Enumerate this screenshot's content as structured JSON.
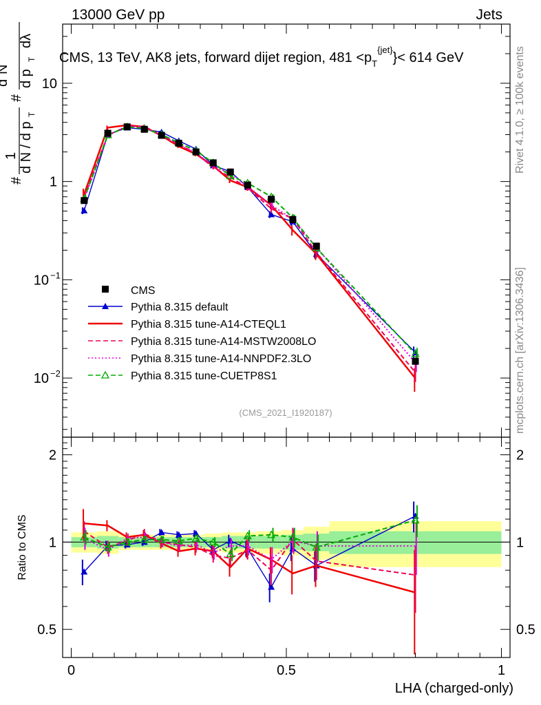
{
  "header": {
    "energy": "13000 GeV pp",
    "category": "Jets"
  },
  "side": {
    "rivet": "Rivet 4.1.0, ≥ 100k events",
    "mcplots": "mcplots.cern.ch [arXiv:1306.3436]"
  },
  "chart_data": {
    "type": "line",
    "title": "CMS, 13 TeV, AK8 jets, forward dijet region, 481 <p_T^{jet}< 614 GeV",
    "title_parts": {
      "main": "CMS, 13 TeV, AK8 jets, forward dijet region, 481 <p",
      "sub": "T",
      "sup": "{jet}",
      "tail": "}< 614 GeV"
    },
    "analysis_id": "(CMS_2021_I1920187)",
    "xlabel": "LHA (charged-only)",
    "ylabel_parts": [
      "#",
      "1",
      "d N / d p",
      "T",
      "#",
      "d",
      "2",
      "N",
      "d p",
      "T",
      "dλ"
    ],
    "ratio_ylabel": "Ratio to CMS",
    "xlim": [
      -0.02,
      1.02
    ],
    "main_ylim": [
      0.0025,
      40
    ],
    "ratio_ylim": [
      0.4,
      2.3
    ],
    "x_ticks": [
      {
        "v": 0,
        "label": "0"
      },
      {
        "v": 0.5,
        "label": "0.5"
      },
      {
        "v": 1,
        "label": "1"
      }
    ],
    "main_y_ticks": [
      {
        "v": 0.01,
        "base": "10",
        "exp": "−2"
      },
      {
        "v": 0.1,
        "base": "10",
        "exp": "−1"
      },
      {
        "v": 1,
        "base": "1",
        "exp": ""
      },
      {
        "v": 10,
        "base": "10",
        "exp": ""
      }
    ],
    "ratio_y_ticks": [
      {
        "v": 0.5,
        "label": "0.5"
      },
      {
        "v": 1,
        "label": "1"
      },
      {
        "v": 2,
        "label": "2"
      }
    ],
    "bins": [
      {
        "lo": 0.0,
        "hi": 0.06
      },
      {
        "lo": 0.06,
        "hi": 0.11
      },
      {
        "lo": 0.11,
        "hi": 0.15
      },
      {
        "lo": 0.15,
        "hi": 0.19
      },
      {
        "lo": 0.19,
        "hi": 0.23
      },
      {
        "lo": 0.23,
        "hi": 0.27
      },
      {
        "lo": 0.27,
        "hi": 0.31
      },
      {
        "lo": 0.31,
        "hi": 0.35
      },
      {
        "lo": 0.35,
        "hi": 0.39
      },
      {
        "lo": 0.39,
        "hi": 0.43
      },
      {
        "lo": 0.43,
        "hi": 0.49
      },
      {
        "lo": 0.49,
        "hi": 0.54
      },
      {
        "lo": 0.54,
        "hi": 0.6
      },
      {
        "lo": 0.6,
        "hi": 1.0
      }
    ],
    "x": [
      0.03,
      0.085,
      0.13,
      0.17,
      0.21,
      0.25,
      0.29,
      0.33,
      0.37,
      0.41,
      0.465,
      0.515,
      0.57,
      0.8
    ],
    "data": {
      "name": "CMS",
      "values": [
        0.64,
        3.1,
        3.6,
        3.4,
        2.95,
        2.45,
        2.0,
        1.55,
        1.25,
        0.92,
        0.66,
        0.41,
        0.22,
        0.0148
      ],
      "band_inner": [
        0.04,
        0.05,
        0.04,
        0.04,
        0.04,
        0.04,
        0.04,
        0.04,
        0.05,
        0.05,
        0.05,
        0.06,
        0.07,
        0.09
      ],
      "band_outer": [
        0.08,
        0.09,
        0.06,
        0.06,
        0.06,
        0.06,
        0.06,
        0.07,
        0.08,
        0.08,
        0.09,
        0.1,
        0.13,
        0.18
      ]
    },
    "series": [
      {
        "name": "Pythia 8.315 default",
        "color": "#0000cc",
        "style": "solid",
        "marker": "triangle-filled",
        "ratios": [
          0.79,
          0.97,
          0.98,
          1.0,
          1.08,
          1.06,
          1.07,
          0.94,
          1.01,
          0.95,
          0.7,
          0.95,
          0.83,
          1.23
        ],
        "ratio_err": [
          0.08,
          0.04,
          0.03,
          0.03,
          0.03,
          0.03,
          0.03,
          0.04,
          0.05,
          0.06,
          0.08,
          0.09,
          0.1,
          0.15
        ]
      },
      {
        "name": "Pythia 8.315 tune-A14-CTEQL1",
        "color": "#ee0000",
        "style": "solid",
        "marker": "none",
        "ratios": [
          1.16,
          1.14,
          1.04,
          1.06,
          0.99,
          0.93,
          0.95,
          0.93,
          0.82,
          0.95,
          0.87,
          0.78,
          0.83,
          0.67
        ],
        "ratio_err": [
          0.14,
          0.05,
          0.04,
          0.04,
          0.04,
          0.04,
          0.05,
          0.05,
          0.06,
          0.07,
          0.09,
          0.12,
          0.13,
          0.27
        ]
      },
      {
        "name": "Pythia 8.315 tune-A14-MSTW2008LO",
        "color": "#ee0055",
        "style": "dashed",
        "marker": "none",
        "ratios": [
          1.09,
          0.96,
          1.01,
          1.07,
          1.0,
          0.98,
          0.96,
          0.9,
          0.88,
          0.94,
          0.8,
          1.02,
          0.86,
          0.77
        ],
        "ratio_err": [
          0.09,
          0.05,
          0.04,
          0.04,
          0.04,
          0.04,
          0.04,
          0.05,
          0.06,
          0.07,
          0.09,
          0.1,
          0.12,
          0.2
        ]
      },
      {
        "name": "Pythia 8.315 tune-A14-NNPDF2.3LO",
        "color": "#dd00dd",
        "style": "dotted",
        "marker": "none",
        "ratios": [
          1.03,
          0.94,
          1.03,
          1.04,
          1.0,
          0.97,
          0.98,
          0.92,
          0.97,
          0.97,
          0.87,
          1.01,
          0.97,
          0.97
        ],
        "ratio_err": [
          0.09,
          0.05,
          0.04,
          0.04,
          0.04,
          0.04,
          0.04,
          0.05,
          0.06,
          0.07,
          0.09,
          0.1,
          0.12,
          0.2
        ]
      },
      {
        "name": "Pythia 8.315 tune-CUETP8S1",
        "color": "#00aa00",
        "style": "dashed",
        "marker": "triangle-open",
        "ratios": [
          1.04,
          0.96,
          1.0,
          1.02,
          1.02,
          1.01,
          1.03,
          1.0,
          0.91,
          1.05,
          1.06,
          1.04,
          0.96,
          1.19
        ],
        "ratio_err": [
          0.06,
          0.04,
          0.03,
          0.03,
          0.03,
          0.03,
          0.03,
          0.04,
          0.05,
          0.05,
          0.06,
          0.08,
          0.1,
          0.15
        ]
      }
    ]
  }
}
